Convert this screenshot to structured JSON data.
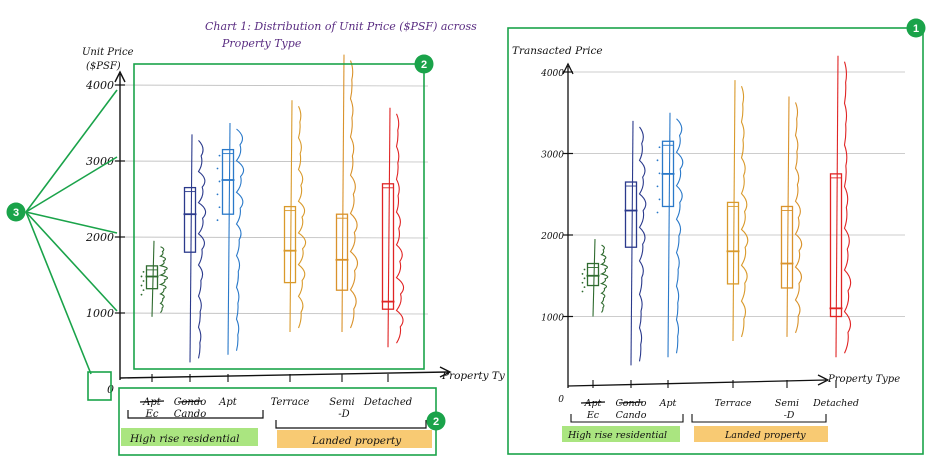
{
  "annotations": {
    "badges": [
      "1",
      "2",
      "2",
      "3"
    ]
  },
  "colors": {
    "ec": "#2f6b2f",
    "condo": "#2b3a8c",
    "apt": "#2a79c9",
    "terrace": "#d99a2b",
    "semi_d": "#d9922b",
    "detached": "#e02424",
    "annotation": "#1aa34a",
    "title": "#5a2d82",
    "highlight_green": "#9be06a",
    "highlight_orange": "#f7c15a"
  },
  "chart_data": [
    {
      "type": "box+violin",
      "title_lines": [
        "Chart 1: Distribution of Unit Price ($PSF) across",
        "Property Type"
      ],
      "ylabel_lines": [
        "Unit Price",
        "($PSF)"
      ],
      "xlabel": "Property Ty",
      "yticks": [
        0,
        1000,
        2000,
        3000,
        4000
      ],
      "ytick_labels": [
        "0",
        "1000",
        "2000",
        "3000",
        "4000"
      ],
      "ylim": [
        0,
        4300
      ],
      "categories": [
        "Ec",
        "Cando",
        "Apt",
        "Terrace",
        "Semi -D",
        "Detached"
      ],
      "struck_labels": [
        "Apt",
        "Condo",
        "",
        "",
        "",
        ""
      ],
      "groups": [
        {
          "label": "High rise residential",
          "categories": [
            "Ec",
            "Cando",
            "Apt"
          ]
        },
        {
          "label": "Landed property",
          "categories": [
            "Terrace",
            "Semi -D",
            "Detached"
          ]
        }
      ],
      "series": [
        {
          "name": "Ec",
          "min": 950,
          "q1": 1320,
          "median": 1480,
          "q3": 1620,
          "max": 1950
        },
        {
          "name": "Cando",
          "min": 350,
          "q1": 1800,
          "median": 2300,
          "q3": 2650,
          "max": 3350
        },
        {
          "name": "Apt",
          "min": 450,
          "q1": 2300,
          "median": 2750,
          "q3": 3150,
          "max": 3500
        },
        {
          "name": "Terrace",
          "min": 750,
          "q1": 1400,
          "median": 1820,
          "q3": 2400,
          "max": 3800
        },
        {
          "name": "Semi -D",
          "min": 750,
          "q1": 1300,
          "median": 1700,
          "q3": 2300,
          "max": 4400
        },
        {
          "name": "Detached",
          "min": 550,
          "q1": 1050,
          "median": 1150,
          "q3": 2700,
          "max": 3700
        }
      ]
    },
    {
      "type": "box+violin",
      "ylabel": "Transacted Price",
      "xlabel": "Property Type",
      "yticks": [
        0,
        1000,
        2000,
        3000,
        4000
      ],
      "ytick_labels": [
        "0",
        "1000",
        "2000",
        "3000",
        "4000"
      ],
      "ylim": [
        0,
        4300
      ],
      "categories": [
        "Ec",
        "Cando",
        "Apt",
        "Terrace",
        "Semi -D",
        "Detached"
      ],
      "struck_labels": [
        "Apt",
        "Condo",
        "",
        "",
        "",
        ""
      ],
      "groups": [
        {
          "label": "High rise residential",
          "categories": [
            "Ec",
            "Cando",
            "Apt"
          ]
        },
        {
          "label": "Landed property",
          "categories": [
            "Terrace",
            "Semi -D",
            "Detached"
          ]
        }
      ],
      "series": [
        {
          "name": "Ec",
          "min": 1000,
          "q1": 1380,
          "median": 1500,
          "q3": 1650,
          "max": 1950
        },
        {
          "name": "Cando",
          "min": 400,
          "q1": 1850,
          "median": 2300,
          "q3": 2650,
          "max": 3400
        },
        {
          "name": "Apt",
          "min": 500,
          "q1": 2350,
          "median": 2750,
          "q3": 3150,
          "max": 3500
        },
        {
          "name": "Terrace",
          "min": 700,
          "q1": 1400,
          "median": 1800,
          "q3": 2400,
          "max": 3900
        },
        {
          "name": "Semi -D",
          "min": 750,
          "q1": 1350,
          "median": 1650,
          "q3": 2350,
          "max": 3700
        },
        {
          "name": "Detached",
          "min": 500,
          "q1": 1000,
          "median": 1100,
          "q3": 2750,
          "max": 4200
        }
      ]
    }
  ]
}
